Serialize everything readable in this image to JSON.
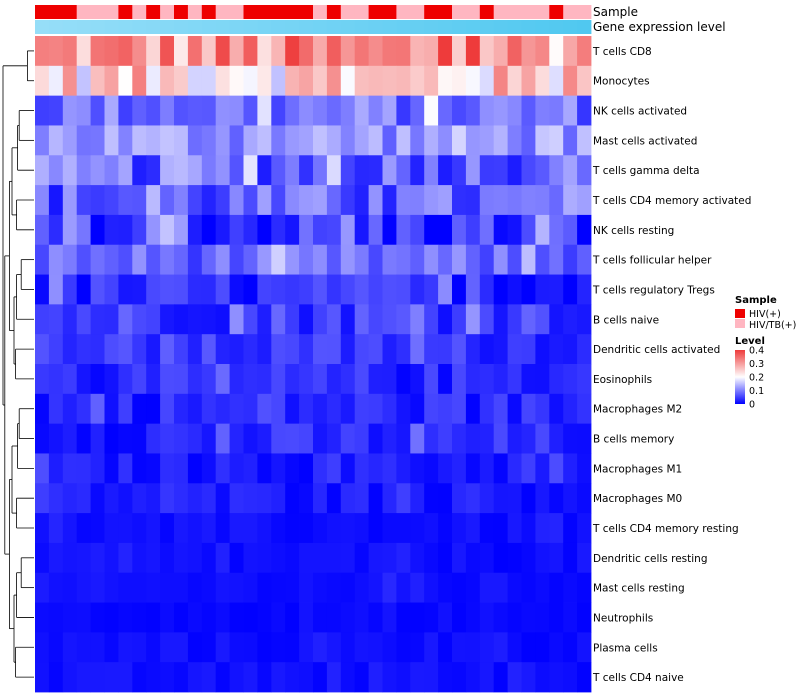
{
  "chart_data": {
    "type": "heatmap",
    "title": "",
    "column_annotations": [
      {
        "name": "Sample"
      },
      {
        "name": "Gene expression level"
      }
    ],
    "row_labels": [
      "T cells CD8",
      "Monocytes",
      "NK cells activated",
      "Mast cells activated",
      "T cells gamma delta",
      "T cells CD4 memory activated",
      "NK cells resting",
      "T cells follicular helper",
      "T cells regulatory  Tregs",
      "B cells naive",
      "Dendritic cells activated",
      "Eosinophils",
      "Macrophages M2",
      "B cells memory",
      "Macrophages M1",
      "Macrophages M0",
      "T cells CD4 memory resting",
      "Dendritic cells resting",
      "Mast cells resting",
      "Neutrophils",
      "Plasma cells",
      "T cells CD4 naive"
    ],
    "n_columns": 40,
    "sample_groups": [
      "HIV(+)",
      "HIV/TB(+)"
    ],
    "sample_annotation": [
      0,
      0,
      0,
      1,
      1,
      1,
      0,
      1,
      0,
      1,
      0,
      1,
      0,
      1,
      1,
      0,
      0,
      0,
      0,
      0,
      1,
      0,
      1,
      1,
      0,
      0,
      1,
      1,
      0,
      0,
      1,
      1,
      0,
      1,
      1,
      1,
      1,
      0,
      1,
      1
    ],
    "legend": {
      "sample": {
        "title": "Sample",
        "entries": [
          "HIV(+)",
          "HIV/TB(+)"
        ],
        "colors": [
          "#ee0000",
          "#ffb6c1"
        ]
      },
      "level": {
        "title": "Level",
        "range": [
          0,
          0.4
        ],
        "ticks": [
          0.4,
          0.3,
          0.2,
          0.1,
          0
        ],
        "colors": [
          "#0000ff",
          "#ffffff",
          "#ee3b3b"
        ],
        "mid": 0.2
      }
    },
    "row_profiles": [
      [
        0.3,
        0.1
      ],
      [
        0.24,
        0.09
      ],
      [
        0.09,
        0.05
      ],
      [
        0.12,
        0.05
      ],
      [
        0.08,
        0.06
      ],
      [
        0.07,
        0.06
      ],
      [
        0.04,
        0.06
      ],
      [
        0.08,
        0.04
      ],
      [
        0.03,
        0.04
      ],
      [
        0.05,
        0.04
      ],
      [
        0.04,
        0.03
      ],
      [
        0.03,
        0.03
      ],
      [
        0.03,
        0.03
      ],
      [
        0.03,
        0.03
      ],
      [
        0.02,
        0.02
      ],
      [
        0.02,
        0.02
      ],
      [
        0.01,
        0.01
      ],
      [
        0.01,
        0.01
      ],
      [
        0.01,
        0.01
      ],
      [
        0.005,
        0.005
      ],
      [
        0.01,
        0.01
      ],
      [
        0.01,
        0.01
      ]
    ]
  }
}
